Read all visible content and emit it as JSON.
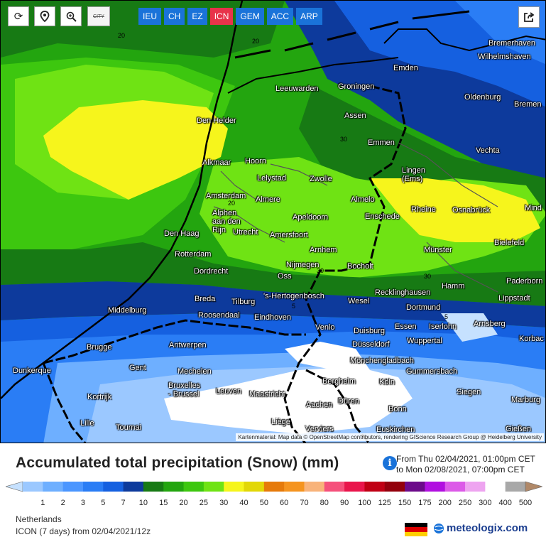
{
  "toolbar": {
    "refresh_icon": "refresh-icon",
    "location_icon": "location-pin-icon",
    "zoom_icon": "zoom-icon",
    "city_toggle_label": "CITY",
    "share_icon": "share-icon"
  },
  "models": [
    {
      "label": "IEU",
      "active": false
    },
    {
      "label": "CH",
      "active": false
    },
    {
      "label": "EZ",
      "active": false
    },
    {
      "label": "ICN",
      "active": true
    },
    {
      "label": "GEM",
      "active": false
    },
    {
      "label": "ACC",
      "active": false
    },
    {
      "label": "ARP",
      "active": false
    }
  ],
  "colors": {
    "model_button": "#1a73d9",
    "model_button_active": "#e8334a",
    "brand": "#1a3d8f"
  },
  "map": {
    "attribution": "Kartenmaterial: Map data © OpenStreetMap contributors, rendering GIScience Research Group @ Heidelberg University",
    "isoline_labels": [
      "20",
      "20",
      "20",
      "30",
      "30",
      "30",
      "5",
      "5"
    ],
    "cities": [
      "Bremerhaven",
      "Wilhelmshaven",
      "Emden",
      "Leeuwarden",
      "Groningen",
      "Oldenburg",
      "Bremen",
      "Den Helder",
      "Assen",
      "Emmen",
      "Vechta",
      "Alkmaar",
      "Hoorn",
      "Lelystad",
      "Zwolle",
      "Lingen (Ems)",
      "Amsterdam",
      "Almere",
      "Almelo",
      "Alphen aan den Rijn",
      "Utrecht",
      "Apeldoorn",
      "Enschede",
      "Rheine",
      "Osnabrück",
      "Mind",
      "Den Haag",
      "Amersfoort",
      "Bielefeld",
      "Rotterdam",
      "Arnhem",
      "Münster",
      "Dordrecht",
      "Nijmegen",
      "Oss",
      "Bocholt",
      "Paderborn",
      "Breda",
      "Tilburg",
      "'s-Hertogenbosch",
      "Recklinghausen",
      "Hamm",
      "Lippstadt",
      "Middelburg",
      "Roosendaal",
      "Eindhoven",
      "Wesel",
      "Dortmund",
      "Arnsberg",
      "Venlo",
      "Duisburg",
      "Essen",
      "Iserlohn",
      "Brugge",
      "Antwerpen",
      "Düsseldorf",
      "Wuppertal",
      "Korbac",
      "Dunkerque",
      "Gent",
      "Mönchengladbach",
      "Mechelen",
      "Gummersbach",
      "Bergheim",
      "Köln",
      "Kortrijk",
      "Bruxelles - Brussel",
      "Leuven",
      "Maastricht",
      "Siegen",
      "Aachen",
      "Düren",
      "Marburg",
      "Bonn",
      "Lille",
      "Tournai",
      "Liège",
      "Verviers",
      "Euskirchen",
      "Gießen"
    ]
  },
  "legend": {
    "title": "Accumulated total precipitation (Snow) (mm)",
    "period_from": "From Thu 02/04/2021, 01:00pm CET",
    "period_to": "to Mon 02/08/2021, 07:00pm CET",
    "ticks": [
      "1",
      "2",
      "3",
      "5",
      "7",
      "10",
      "15",
      "20",
      "25",
      "30",
      "40",
      "50",
      "60",
      "70",
      "80",
      "90",
      "100",
      "125",
      "150",
      "175",
      "200",
      "250",
      "300",
      "400",
      "500"
    ],
    "colors": [
      "#c6e1ff",
      "#9bc8ff",
      "#6eafff",
      "#4b96ff",
      "#2a7df5",
      "#1560e0",
      "#0d3a9c",
      "#177a14",
      "#23a50f",
      "#3dc70f",
      "#6fe314",
      "#f6f51c",
      "#e2d707",
      "#e67a0a",
      "#f5941f",
      "#f8b37a",
      "#f5507b",
      "#e9154b",
      "#c00014",
      "#93000c",
      "#6c0a8a",
      "#b10fe0",
      "#dc5ae8",
      "#eea4f0",
      "#ffffff",
      "#a8a8a8",
      "#b08868"
    ]
  },
  "footer": {
    "region": "Netherlands",
    "run": "ICON  (7 days)  from 02/04/2021/12z",
    "brand": "meteologix.com",
    "flag_colors": [
      "#000000",
      "#dd0000",
      "#ffce00"
    ]
  }
}
